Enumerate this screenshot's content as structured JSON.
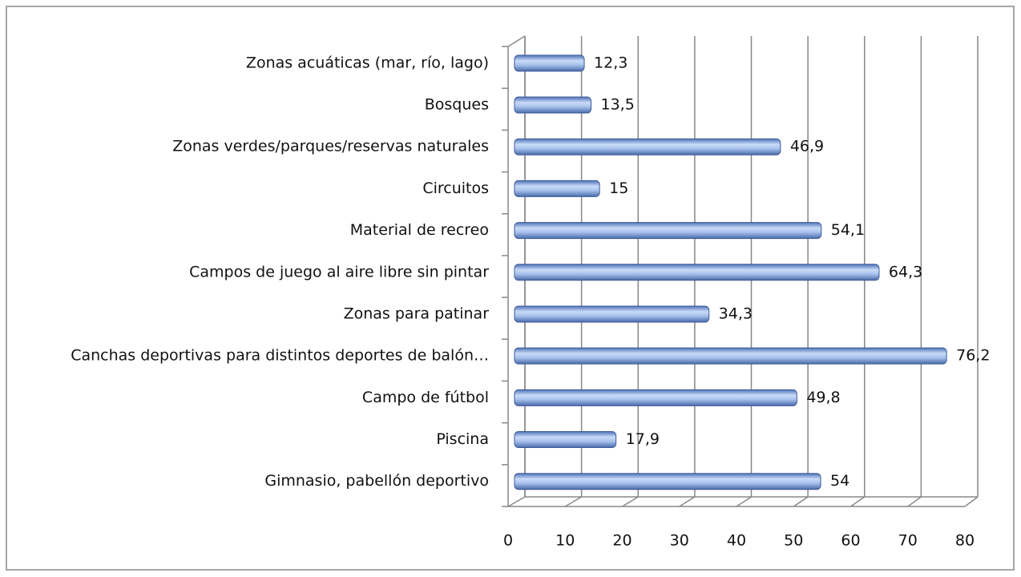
{
  "chart_data": {
    "type": "bar",
    "orientation": "horizontal",
    "categories": [
      "Zonas acuáticas (mar, río, lago)",
      "Bosques",
      "Zonas verdes/parques/reservas naturales",
      "Circuitos",
      "Material de recreo",
      "Campos de juego al aire libre sin pintar",
      "Zonas para patinar",
      "Canchas deportivas para distintos deportes de balón…",
      "Campo de fútbol",
      "Piscina",
      "Gimnasio, pabellón deportivo"
    ],
    "values": [
      12.3,
      13.5,
      46.9,
      15,
      54.1,
      64.3,
      34.3,
      76.2,
      49.8,
      17.9,
      54
    ],
    "value_labels": [
      "12,3",
      "13,5",
      "46,9",
      "15",
      "54,1",
      "64,3",
      "34,3",
      "76,2",
      "49,8",
      "17,9",
      "54"
    ],
    "color": "#7f9fd8",
    "xlim": [
      0,
      80
    ],
    "xticks": [
      0,
      10,
      20,
      30,
      40,
      50,
      60,
      70,
      80
    ],
    "grid": true
  }
}
